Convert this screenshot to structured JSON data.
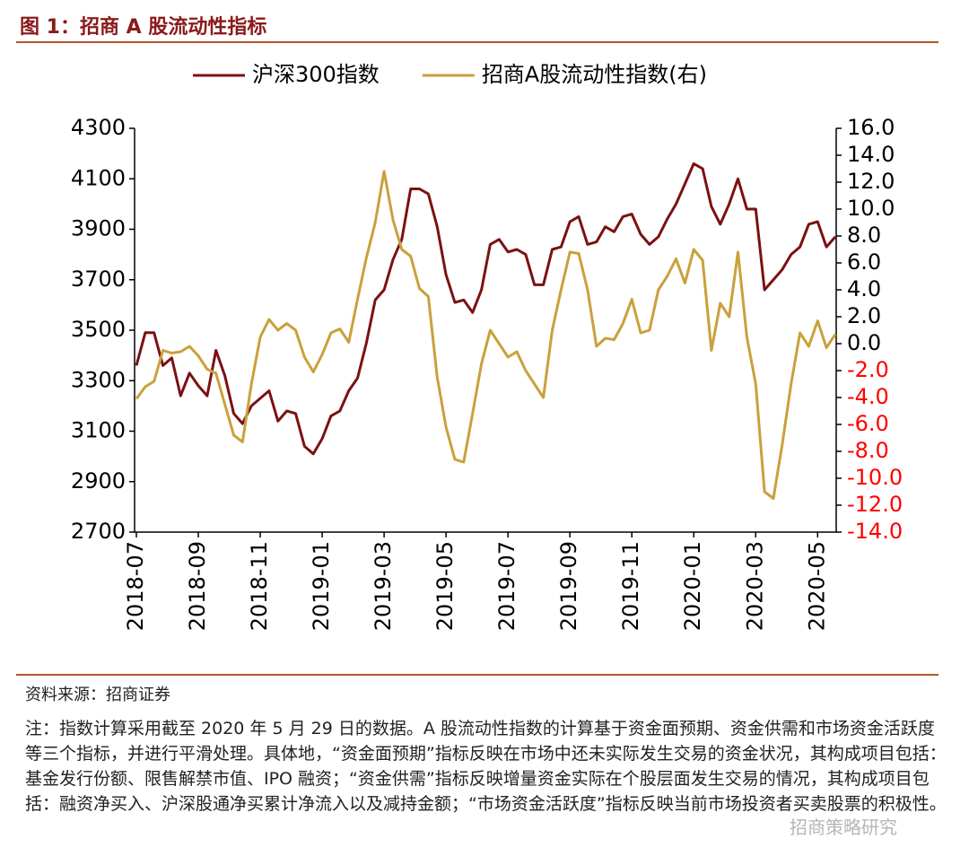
{
  "chart_data": {
    "type": "line",
    "figure_label": "图 1：",
    "title": "招商 A 股流动性指标",
    "categories": [
      "2018-07",
      null,
      null,
      null,
      null,
      null,
      null,
      "2018-09",
      null,
      null,
      null,
      null,
      null,
      null,
      "2018-11",
      null,
      null,
      null,
      null,
      null,
      null,
      "2019-01",
      null,
      null,
      null,
      null,
      null,
      null,
      "2019-03",
      null,
      null,
      null,
      null,
      null,
      null,
      "2019-05",
      null,
      null,
      null,
      null,
      null,
      null,
      "2019-07",
      null,
      null,
      null,
      null,
      null,
      null,
      "2019-09",
      null,
      null,
      null,
      null,
      null,
      null,
      "2019-11",
      null,
      null,
      null,
      null,
      null,
      null,
      "2020-01",
      null,
      null,
      null,
      null,
      null,
      null,
      "2020-03",
      null,
      null,
      null,
      null,
      null,
      null,
      "2020-05",
      null,
      null
    ],
    "series": [
      {
        "name": "沪深300指数",
        "color": "#7b1113",
        "values": [
          3360,
          3490,
          3490,
          3360,
          3390,
          3240,
          3330,
          3280,
          3240,
          3420,
          3320,
          3170,
          3130,
          3200,
          3230,
          3260,
          3140,
          3180,
          3170,
          3040,
          3010,
          3070,
          3160,
          3180,
          3260,
          3310,
          3450,
          3620,
          3660,
          3780,
          3860,
          4060,
          4060,
          4040,
          3910,
          3720,
          3610,
          3620,
          3570,
          3660,
          3840,
          3860,
          3810,
          3820,
          3800,
          3680,
          3680,
          3820,
          3830,
          3930,
          3950,
          3840,
          3850,
          3910,
          3890,
          3950,
          3960,
          3880,
          3840,
          3870,
          3940,
          4000,
          4080,
          4160,
          4140,
          3990,
          3920,
          4000,
          4100,
          3980,
          3980,
          3660,
          3700,
          3740,
          3800,
          3830,
          3920,
          3930,
          3830,
          3870
        ]
      },
      {
        "name": "招商A股流动性指数(右)",
        "color": "#c9a13b",
        "axis": "y2",
        "values": [
          -4.1,
          -3.2,
          -2.8,
          -0.5,
          -0.7,
          -0.6,
          -0.2,
          -0.9,
          -1.9,
          -2.2,
          -4.5,
          -6.8,
          -7.3,
          -3,
          0.5,
          1.8,
          1.0,
          1.5,
          1.0,
          -1.0,
          -2.1,
          -0.8,
          0.8,
          1.1,
          0.1,
          3.3,
          6.4,
          9,
          12.8,
          9.2,
          7,
          6.5,
          4.1,
          3.5,
          -2.5,
          -6.2,
          -8.6,
          -8.8,
          -5.2,
          -1.5,
          1.0,
          0,
          -1,
          -0.6,
          -2,
          -3,
          -4,
          1,
          4,
          6.8,
          6.7,
          4,
          -0.2,
          0.4,
          0.3,
          1.5,
          3.3,
          0.8,
          1,
          4,
          5,
          6.3,
          4.5,
          7,
          6.2,
          -0.5,
          3,
          2,
          6.8,
          0.5,
          -3,
          -11,
          -11.5,
          -7.5,
          -3,
          0.8,
          -0.2,
          1.7,
          -0.3,
          0.7
        ]
      }
    ],
    "ylim": [
      2700,
      4300
    ],
    "yticks": [
      2700,
      2900,
      3100,
      3300,
      3500,
      3700,
      3900,
      4100,
      4300
    ],
    "y2lim": [
      -14,
      16
    ],
    "y2ticks": [
      {
        "value": -14,
        "label": "-14.0"
      },
      {
        "value": -12,
        "label": "-12.0"
      },
      {
        "value": -10,
        "label": "-10.0"
      },
      {
        "value": -8,
        "label": "-8.0"
      },
      {
        "value": -6,
        "label": "-6.0"
      },
      {
        "value": -4,
        "label": "-4.0"
      },
      {
        "value": -2,
        "label": "-2.0"
      },
      {
        "value": 0,
        "label": "0.0"
      },
      {
        "value": 2,
        "label": "2.0"
      },
      {
        "value": 4,
        "label": "4.0"
      },
      {
        "value": 6,
        "label": "6.0"
      },
      {
        "value": 8,
        "label": "8.0"
      },
      {
        "value": 10,
        "label": "10.0"
      },
      {
        "value": 12,
        "label": "12.0"
      },
      {
        "value": 14,
        "label": "14.0"
      },
      {
        "value": 16,
        "label": "16.0"
      }
    ],
    "y2_negative_tick_color": "#ff0000",
    "grid": false,
    "legend": "top",
    "source": "资料来源：招商证券",
    "note": "注：指数计算采用截至 2020 年 5 月 29 日的数据。A 股流动性指数的计算基于资金面预期、资金供需和市场资金活跃度等三个指标，并进行平滑处理。具体地，“资金面预期”指标反映在市场中还未实际发生交易的资金状况，其构成项目包括：基金发行份额、限售解禁市值、IPO 融资；“资金供需”指标反映增量资金实际在个股层面发生交易的情况，其构成项目包括：融资净买入、沪深股通净买累计净流入以及减持金额；“市场资金活跃度”指标反映当前市场投资者买卖股票的积极性。",
    "watermark": "招商策略研究"
  }
}
